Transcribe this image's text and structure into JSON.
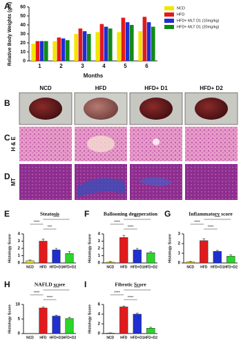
{
  "figure": {
    "panel_labels": [
      "B",
      "C",
      "D"
    ],
    "photo_labels": [
      "NCD",
      "HFD",
      "HFD+ D1",
      "HFD+ D2"
    ],
    "stain_labels": [
      "H & E",
      "MT"
    ]
  },
  "chart_data": [
    {
      "type": "grouped-bar",
      "panel_label": "A",
      "y_label": "Relative Body Weights (gm)",
      "x_label": "Months",
      "categories": [
        "1",
        "2",
        "3",
        "4",
        "5",
        "6"
      ],
      "series": [
        {
          "name": "NCD",
          "color": "#f2e600",
          "values": [
            19,
            22,
            30,
            32,
            32,
            33
          ]
        },
        {
          "name": "HFD",
          "color": "#e31a1c",
          "values": [
            22,
            26,
            36,
            41,
            48,
            49
          ]
        },
        {
          "name": "HFD+ MLT D1 (10mg/kg)",
          "color": "#1f2fd0",
          "values": [
            22,
            25,
            33,
            38,
            43,
            43
          ]
        },
        {
          "name": "HFD+ MLT D1 (20mg/kg)",
          "color": "#118a18",
          "values": [
            22,
            23,
            30,
            36,
            40,
            38
          ]
        }
      ],
      "ylim": [
        0,
        60
      ],
      "yticks": [
        0,
        10,
        20,
        30,
        40,
        50,
        60
      ]
    },
    {
      "type": "bar",
      "panel_label": "E",
      "title": "Steatosis",
      "y_label": "Histology Score",
      "categories": [
        "NCD",
        "HFD",
        "HFD+D1",
        "HFD+D2"
      ],
      "values": [
        0.3,
        3.0,
        1.8,
        1.3
      ],
      "errors": [
        0.1,
        0.3,
        0.2,
        0.3
      ],
      "colors": [
        "#f2e600",
        "#e31a1c",
        "#1f2fd0",
        "#2bd62b"
      ],
      "ylim": [
        0,
        4
      ],
      "yticks": [
        0,
        1,
        2,
        3,
        4
      ],
      "significance": [
        {
          "pair": [
            "NCD",
            "HFD"
          ],
          "label": "****"
        },
        {
          "pair": [
            "HFD",
            "HFD+D1"
          ],
          "label": "***"
        },
        {
          "pair": [
            "HFD",
            "HFD+D2"
          ],
          "label": "****"
        }
      ]
    },
    {
      "type": "bar",
      "panel_label": "F",
      "title": "Ballooning degeneration",
      "y_label": "Histology Score",
      "categories": [
        "NCD",
        "HFD",
        "HFD+D1",
        "HFD+D2"
      ],
      "values": [
        0.1,
        3.5,
        1.8,
        1.4
      ],
      "errors": [
        0.1,
        0.3,
        0.2,
        0.15
      ],
      "colors": [
        "#f2e600",
        "#e31a1c",
        "#1f2fd0",
        "#2bd62b"
      ],
      "ylim": [
        0,
        4
      ],
      "yticks": [
        0,
        1,
        2,
        3,
        4
      ],
      "significance": [
        {
          "pair": [
            "NCD",
            "HFD"
          ],
          "label": "****"
        },
        {
          "pair": [
            "HFD",
            "HFD+D1"
          ],
          "label": "****"
        },
        {
          "pair": [
            "HFD",
            "HFD+D2"
          ],
          "label": "****"
        }
      ]
    },
    {
      "type": "bar",
      "panel_label": "G",
      "title": "Inflammatory score",
      "y_label": "Histology Score",
      "categories": [
        "NCD",
        "HFD",
        "HFD+D1",
        "HFD+D2"
      ],
      "values": [
        0.1,
        2.3,
        1.2,
        0.7
      ],
      "errors": [
        0.05,
        0.2,
        0.1,
        0.15
      ],
      "colors": [
        "#f2e600",
        "#e31a1c",
        "#1f2fd0",
        "#2bd62b"
      ],
      "ylim": [
        0,
        3
      ],
      "yticks": [
        0,
        1,
        2,
        3
      ],
      "significance": [
        {
          "pair": [
            "NCD",
            "HFD"
          ],
          "label": "****"
        },
        {
          "pair": [
            "HFD",
            "HFD+D1"
          ],
          "label": "****"
        },
        {
          "pair": [
            "HFD",
            "HFD+D2"
          ],
          "label": "****"
        }
      ]
    },
    {
      "type": "bar",
      "panel_label": "H",
      "title": "NAFLD score",
      "y_label": "Histology Score",
      "categories": [
        "NCD",
        "HFD",
        "HFD+D1",
        "HFD+D2"
      ],
      "values": [
        0,
        8.8,
        6.0,
        5.2
      ],
      "errors": [
        0,
        0.3,
        0.3,
        0.4
      ],
      "colors": [
        "#f2e600",
        "#e31a1c",
        "#1f2fd0",
        "#2bd62b"
      ],
      "ylim": [
        0,
        10
      ],
      "yticks": [
        0,
        5,
        10
      ],
      "significance": [
        {
          "pair": [
            "NCD",
            "HFD"
          ],
          "label": "****"
        },
        {
          "pair": [
            "HFD",
            "HFD+D1"
          ],
          "label": "****"
        },
        {
          "pair": [
            "HFD",
            "HFD+D2"
          ],
          "label": "****"
        }
      ]
    },
    {
      "type": "bar",
      "panel_label": "I",
      "title": "Fibrotic Score",
      "y_label": "Histology Score",
      "categories": [
        "NCD",
        "HFD",
        "HFD+D1",
        "HFD+D2"
      ],
      "values": [
        0.1,
        5.5,
        4.0,
        1.1
      ],
      "errors": [
        0.05,
        0.2,
        0.2,
        0.2
      ],
      "colors": [
        "#f2e600",
        "#e31a1c",
        "#1f2fd0",
        "#2bd62b"
      ],
      "ylim": [
        0,
        6
      ],
      "yticks": [
        0,
        2,
        4,
        6
      ],
      "significance": [
        {
          "pair": [
            "NCD",
            "HFD"
          ],
          "label": "****"
        },
        {
          "pair": [
            "HFD",
            "HFD+D1"
          ],
          "label": "****"
        },
        {
          "pair": [
            "HFD",
            "HFD+D2"
          ],
          "label": "****"
        }
      ]
    }
  ]
}
